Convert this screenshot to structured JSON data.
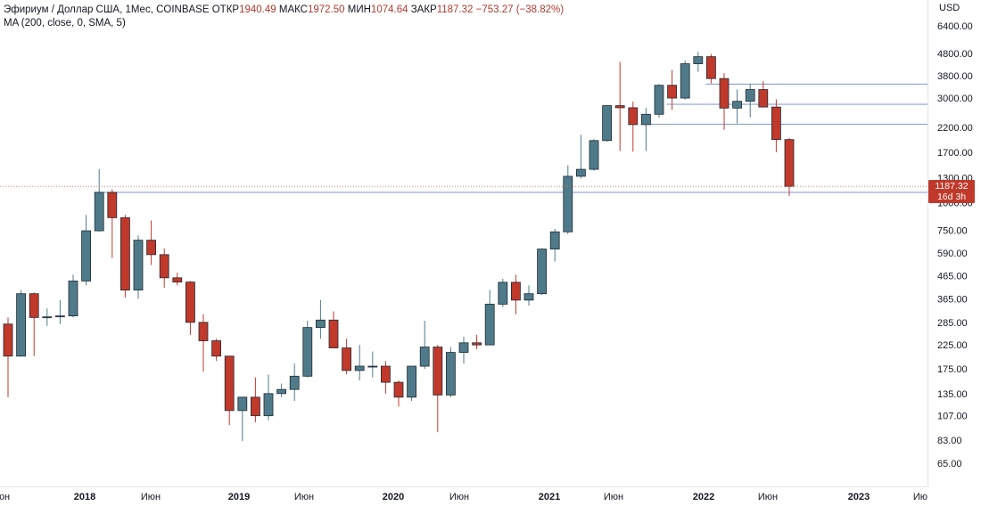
{
  "legend": {
    "symbol": "Эфириум / Доллар США, 1Мес, COINBASE",
    "open_label": "ОТКР",
    "open_value": "1940.49",
    "high_label": "МАКС",
    "high_value": "1972.50",
    "low_label": "МИН",
    "low_value": "1074.64",
    "close_label": "ЗАКР",
    "close_value": "1187.32",
    "change": "−753.27 (−38.82%)",
    "ma": "MA (200, close, 0, SMA, 5)"
  },
  "price_axis": {
    "currency": "USD",
    "ticks": [
      "6400.00",
      "4800.00",
      "3800.00",
      "3000.00",
      "2200.00",
      "1700.00",
      "1300.00",
      "1000.00",
      "750.00",
      "590.00",
      "465.00",
      "365.00",
      "285.00",
      "225.00",
      "175.00",
      "135.00",
      "107.00",
      "83.00",
      "65.00"
    ],
    "last_price": "1187.32",
    "countdown": "16d 3h"
  },
  "time_axis": {
    "labels": [
      "Июн",
      "2018",
      "Июн",
      "2019",
      "Июн",
      "2020",
      "Июн",
      "2021",
      "Июн",
      "2022",
      "Июн",
      "2023",
      "Июн"
    ],
    "year_labels": [
      "2018",
      "2019",
      "2020",
      "2021",
      "2022",
      "2023"
    ]
  },
  "colors": {
    "up": "#4f7a8a",
    "down": "#c0392b",
    "line": "#8ea2d6",
    "price_line": "#e07b6a"
  },
  "chart_data": {
    "type": "candlestick",
    "title": "Эфириум / Доллар США, 1Мес, COINBASE",
    "scale": "log",
    "y_unit": "USD",
    "x": [
      "2017-06",
      "2017-07",
      "2017-08",
      "2017-09",
      "2017-10",
      "2017-11",
      "2017-12",
      "2018-01",
      "2018-02",
      "2018-03",
      "2018-04",
      "2018-05",
      "2018-06",
      "2018-07",
      "2018-08",
      "2018-09",
      "2018-10",
      "2018-11",
      "2018-12",
      "2019-01",
      "2019-02",
      "2019-03",
      "2019-04",
      "2019-05",
      "2019-06",
      "2019-07",
      "2019-08",
      "2019-09",
      "2019-10",
      "2019-11",
      "2019-12",
      "2020-01",
      "2020-02",
      "2020-03",
      "2020-04",
      "2020-05",
      "2020-06",
      "2020-07",
      "2020-08",
      "2020-09",
      "2020-10",
      "2020-11",
      "2020-12",
      "2021-01",
      "2021-02",
      "2021-03",
      "2021-04",
      "2021-05",
      "2021-06",
      "2021-07",
      "2021-08",
      "2021-09",
      "2021-10",
      "2021-11",
      "2021-12",
      "2022-01",
      "2022-02",
      "2022-03",
      "2022-04",
      "2022-05",
      "2022-06"
    ],
    "candles": [
      {
        "o": 280,
        "h": 300,
        "l": 130,
        "c": 200
      },
      {
        "o": 200,
        "h": 400,
        "l": 200,
        "c": 385
      },
      {
        "o": 385,
        "h": 390,
        "l": 200,
        "c": 300
      },
      {
        "o": 300,
        "h": 330,
        "l": 275,
        "c": 302
      },
      {
        "o": 302,
        "h": 360,
        "l": 280,
        "c": 305
      },
      {
        "o": 305,
        "h": 470,
        "l": 300,
        "c": 440
      },
      {
        "o": 440,
        "h": 880,
        "l": 420,
        "c": 745
      },
      {
        "o": 745,
        "h": 1420,
        "l": 740,
        "c": 1115
      },
      {
        "o": 1115,
        "h": 1150,
        "l": 560,
        "c": 855
      },
      {
        "o": 855,
        "h": 880,
        "l": 370,
        "c": 400
      },
      {
        "o": 400,
        "h": 710,
        "l": 365,
        "c": 675
      },
      {
        "o": 675,
        "h": 830,
        "l": 520,
        "c": 580
      },
      {
        "o": 580,
        "h": 620,
        "l": 410,
        "c": 455
      },
      {
        "o": 455,
        "h": 480,
        "l": 420,
        "c": 435
      },
      {
        "o": 435,
        "h": 440,
        "l": 250,
        "c": 285
      },
      {
        "o": 285,
        "h": 310,
        "l": 170,
        "c": 235
      },
      {
        "o": 235,
        "h": 240,
        "l": 190,
        "c": 200
      },
      {
        "o": 200,
        "h": 200,
        "l": 97,
        "c": 113
      },
      {
        "o": 113,
        "h": 125,
        "l": 82,
        "c": 130
      },
      {
        "o": 130,
        "h": 160,
        "l": 100,
        "c": 107
      },
      {
        "o": 107,
        "h": 165,
        "l": 102,
        "c": 135
      },
      {
        "o": 135,
        "h": 150,
        "l": 130,
        "c": 141
      },
      {
        "o": 141,
        "h": 185,
        "l": 125,
        "c": 162
      },
      {
        "o": 162,
        "h": 290,
        "l": 160,
        "c": 270
      },
      {
        "o": 270,
        "h": 360,
        "l": 240,
        "c": 292
      },
      {
        "o": 292,
        "h": 320,
        "l": 220,
        "c": 218
      },
      {
        "o": 218,
        "h": 240,
        "l": 165,
        "c": 172
      },
      {
        "o": 172,
        "h": 225,
        "l": 155,
        "c": 180
      },
      {
        "o": 180,
        "h": 210,
        "l": 160,
        "c": 180
      },
      {
        "o": 180,
        "h": 190,
        "l": 135,
        "c": 152
      },
      {
        "o": 152,
        "h": 155,
        "l": 118,
        "c": 130
      },
      {
        "o": 130,
        "h": 180,
        "l": 125,
        "c": 180
      },
      {
        "o": 180,
        "h": 290,
        "l": 175,
        "c": 220
      },
      {
        "o": 220,
        "h": 225,
        "l": 90,
        "c": 133
      },
      {
        "o": 133,
        "h": 220,
        "l": 130,
        "c": 208
      },
      {
        "o": 208,
        "h": 245,
        "l": 185,
        "c": 230
      },
      {
        "o": 230,
        "h": 250,
        "l": 215,
        "c": 225
      },
      {
        "o": 225,
        "h": 400,
        "l": 225,
        "c": 345
      },
      {
        "o": 345,
        "h": 450,
        "l": 335,
        "c": 434
      },
      {
        "o": 434,
        "h": 470,
        "l": 310,
        "c": 360
      },
      {
        "o": 360,
        "h": 420,
        "l": 340,
        "c": 385
      },
      {
        "o": 385,
        "h": 620,
        "l": 380,
        "c": 615
      },
      {
        "o": 615,
        "h": 760,
        "l": 540,
        "c": 737
      },
      {
        "o": 737,
        "h": 1480,
        "l": 720,
        "c": 1320
      },
      {
        "o": 1320,
        "h": 2040,
        "l": 1290,
        "c": 1420
      },
      {
        "o": 1420,
        "h": 1945,
        "l": 1400,
        "c": 1920
      },
      {
        "o": 1920,
        "h": 2790,
        "l": 1900,
        "c": 2770
      },
      {
        "o": 2770,
        "h": 4380,
        "l": 1720,
        "c": 2710
      },
      {
        "o": 2710,
        "h": 2890,
        "l": 1710,
        "c": 2270
      },
      {
        "o": 2270,
        "h": 2700,
        "l": 1720,
        "c": 2530
      },
      {
        "o": 2530,
        "h": 3470,
        "l": 2450,
        "c": 3430
      },
      {
        "o": 3430,
        "h": 4030,
        "l": 2650,
        "c": 3000
      },
      {
        "o": 3000,
        "h": 4450,
        "l": 2950,
        "c": 4300
      },
      {
        "o": 4300,
        "h": 4870,
        "l": 3950,
        "c": 4630
      },
      {
        "o": 4630,
        "h": 4770,
        "l": 3500,
        "c": 3680
      },
      {
        "o": 3680,
        "h": 3900,
        "l": 2150,
        "c": 2700
      },
      {
        "o": 2700,
        "h": 3280,
        "l": 2300,
        "c": 2900
      },
      {
        "o": 2900,
        "h": 3480,
        "l": 2450,
        "c": 3280
      },
      {
        "o": 3280,
        "h": 3580,
        "l": 2770,
        "c": 2730
      },
      {
        "o": 2730,
        "h": 2960,
        "l": 1700,
        "c": 1940
      },
      {
        "o": 1940,
        "h": 1972.5,
        "l": 1074.64,
        "c": 1187.32
      }
    ],
    "horizontal_lines": [
      3470,
      2810,
      2280,
      1115
    ],
    "last_price": 1187.32,
    "y_ticks": [
      6400,
      4800,
      3800,
      3000,
      2200,
      1700,
      1300,
      1000,
      750,
      590,
      465,
      365,
      285,
      225,
      175,
      135,
      107,
      83,
      65
    ]
  }
}
